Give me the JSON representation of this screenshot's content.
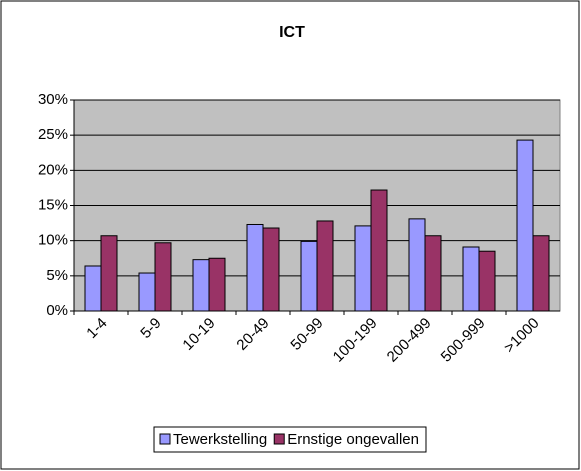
{
  "chart_data": {
    "type": "bar",
    "title": "ICT",
    "categories": [
      "1-4",
      "5-9",
      "10-19",
      "20-49",
      "50-99",
      "100-199",
      "200-499",
      "500-999",
      ">1000"
    ],
    "series": [
      {
        "name": "Tewerkstelling",
        "color": "#9999ff",
        "values": [
          6.4,
          5.4,
          7.3,
          12.3,
          9.9,
          12.1,
          13.1,
          9.1,
          24.3
        ]
      },
      {
        "name": "Ernstige ongevallen",
        "color": "#993366",
        "values": [
          10.7,
          9.7,
          7.5,
          11.8,
          12.8,
          17.2,
          10.7,
          8.5,
          10.7
        ]
      }
    ],
    "ylim": [
      0,
      30
    ],
    "yticks": [
      {
        "value": 0,
        "label": "0%"
      },
      {
        "value": 5,
        "label": "5%"
      },
      {
        "value": 10,
        "label": "10%"
      },
      {
        "value": 15,
        "label": "15%"
      },
      {
        "value": 20,
        "label": "20%"
      },
      {
        "value": 25,
        "label": "25%"
      },
      {
        "value": 30,
        "label": "30%"
      }
    ],
    "grid": true,
    "legend": "bottom",
    "plot_background": "#c0c0c0"
  }
}
